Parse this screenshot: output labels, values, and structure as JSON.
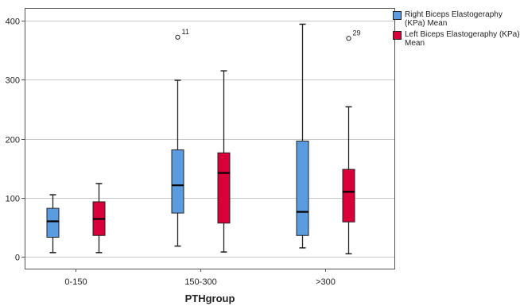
{
  "chart_data": {
    "type": "box",
    "xlabel": "PTHgroup",
    "ylabel": "",
    "ylim": [
      -20,
      420
    ],
    "yticks": [
      0,
      100,
      200,
      300,
      400
    ],
    "grid": "horizontal",
    "legend_position": "top-right",
    "categories": [
      "0-150",
      "150-300",
      ">300"
    ],
    "series": [
      {
        "name": "Right Biceps Elastogeraphy (KPa) Mean",
        "color": "#5B9BE0",
        "boxes": [
          {
            "whisker_low": 7,
            "q1": 33,
            "median": 60,
            "q3": 82,
            "whisker_high": 105,
            "outliers": []
          },
          {
            "whisker_low": 18,
            "q1": 74,
            "median": 121,
            "q3": 181,
            "whisker_high": 299,
            "outliers": [
              {
                "value": 372,
                "label": "11"
              }
            ]
          },
          {
            "whisker_low": 15,
            "q1": 36,
            "median": 76,
            "q3": 196,
            "whisker_high": 394,
            "outliers": []
          }
        ]
      },
      {
        "name": "Left Biceps Elastogeraphy (KPa) Mean",
        "color": "#D9003A",
        "boxes": [
          {
            "whisker_low": 7,
            "q1": 36,
            "median": 64,
            "q3": 93,
            "whisker_high": 124,
            "outliers": []
          },
          {
            "whisker_low": 8,
            "q1": 57,
            "median": 142,
            "q3": 176,
            "whisker_high": 315,
            "outliers": []
          },
          {
            "whisker_low": 5,
            "q1": 59,
            "median": 110,
            "q3": 148,
            "whisker_high": 254,
            "outliers": [
              {
                "value": 370,
                "label": "29"
              }
            ]
          }
        ]
      }
    ]
  }
}
